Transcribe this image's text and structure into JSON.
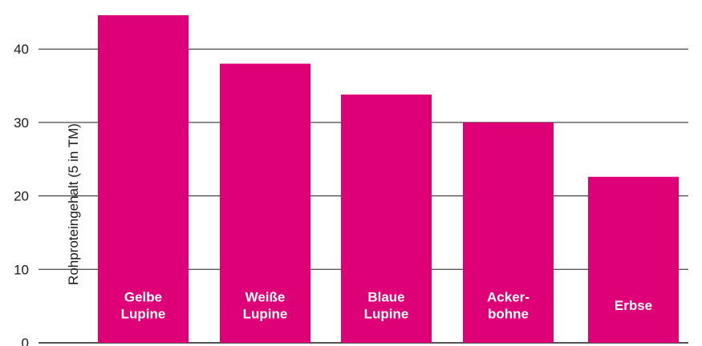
{
  "chart_data": {
    "type": "bar",
    "title": "",
    "xlabel": "",
    "ylabel": "Rohproteingehalt (5 in TM)",
    "ylim": [
      0,
      45
    ],
    "yticks": [
      0,
      10,
      20,
      30,
      40
    ],
    "grid": true,
    "categories": [
      [
        "Gelbe",
        "Lupine"
      ],
      [
        "Weiße",
        "Lupine"
      ],
      [
        "Blaue",
        "Lupine"
      ],
      [
        "Acker-",
        "bohne"
      ],
      [
        "Erbse"
      ]
    ],
    "values": [
      44.6,
      38.0,
      33.8,
      30.0,
      22.6
    ],
    "colors": {
      "bar": "#de0077",
      "grid": "#1a1a1a",
      "label": "#ffffff"
    }
  }
}
